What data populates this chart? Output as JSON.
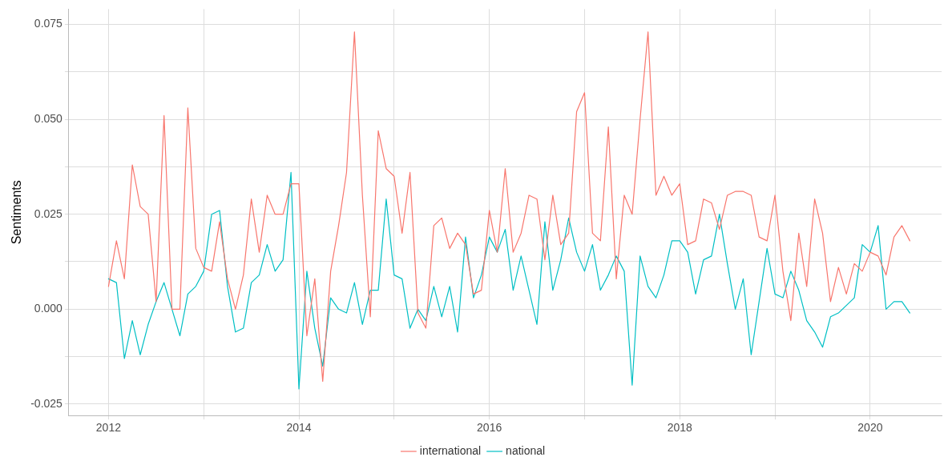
{
  "chart_data": {
    "type": "line",
    "ylabel": "Sentiments",
    "x": [
      "2012-01",
      "2012-02",
      "2012-03",
      "2012-04",
      "2012-05",
      "2012-06",
      "2012-07",
      "2012-08",
      "2012-09",
      "2012-10",
      "2012-11",
      "2012-12",
      "2013-01",
      "2013-02",
      "2013-03",
      "2013-04",
      "2013-05",
      "2013-06",
      "2013-07",
      "2013-08",
      "2013-09",
      "2013-10",
      "2013-11",
      "2013-12",
      "2014-01",
      "2014-02",
      "2014-03",
      "2014-04",
      "2014-05",
      "2014-06",
      "2014-07",
      "2014-08",
      "2014-09",
      "2014-10",
      "2014-11",
      "2014-12",
      "2015-01",
      "2015-02",
      "2015-03",
      "2015-04",
      "2015-05",
      "2015-06",
      "2015-07",
      "2015-08",
      "2015-09",
      "2015-10",
      "2015-11",
      "2015-12",
      "2016-01",
      "2016-02",
      "2016-03",
      "2016-04",
      "2016-05",
      "2016-06",
      "2016-07",
      "2016-08",
      "2016-09",
      "2016-10",
      "2016-11",
      "2016-12",
      "2017-01",
      "2017-02",
      "2017-03",
      "2017-04",
      "2017-05",
      "2017-06",
      "2017-07",
      "2017-08",
      "2017-09",
      "2017-10",
      "2017-11",
      "2017-12",
      "2018-01",
      "2018-02",
      "2018-03",
      "2018-04",
      "2018-05",
      "2018-06",
      "2018-07",
      "2018-08",
      "2018-09",
      "2018-10",
      "2018-11",
      "2018-12",
      "2019-01",
      "2019-02",
      "2019-03",
      "2019-04",
      "2019-05",
      "2019-06",
      "2019-07",
      "2019-08",
      "2019-09",
      "2019-10",
      "2019-11",
      "2019-12",
      "2020-01",
      "2020-02",
      "2020-03",
      "2020-04",
      "2020-05",
      "2020-06"
    ],
    "series": [
      {
        "name": "international",
        "color": "#f8766d",
        "values": [
          0.006,
          0.018,
          0.008,
          0.038,
          0.027,
          0.025,
          0.002,
          0.051,
          0.0,
          0.0,
          0.053,
          0.016,
          0.011,
          0.01,
          0.023,
          0.008,
          0.0,
          0.009,
          0.029,
          0.015,
          0.03,
          0.025,
          0.025,
          0.033,
          0.033,
          -0.007,
          0.008,
          -0.019,
          0.01,
          0.022,
          0.036,
          0.073,
          0.03,
          -0.002,
          0.047,
          0.037,
          0.035,
          0.02,
          0.036,
          -0.001,
          -0.005,
          0.022,
          0.024,
          0.016,
          0.02,
          0.017,
          0.004,
          0.005,
          0.026,
          0.015,
          0.037,
          0.015,
          0.02,
          0.03,
          0.029,
          0.013,
          0.03,
          0.017,
          0.02,
          0.052,
          0.057,
          0.02,
          0.018,
          0.048,
          0.008,
          0.03,
          0.025,
          0.05,
          0.073,
          0.03,
          0.035,
          0.03,
          0.033,
          0.017,
          0.018,
          0.029,
          0.028,
          0.021,
          0.03,
          0.031,
          0.031,
          0.03,
          0.019,
          0.018,
          0.03,
          0.01,
          -0.003,
          0.02,
          0.006,
          0.029,
          0.02,
          0.002,
          0.011,
          0.004,
          0.012,
          0.01,
          0.015,
          0.014,
          0.009,
          0.019,
          0.022,
          0.018
        ]
      },
      {
        "name": "national",
        "color": "#00bfc4",
        "values": [
          0.008,
          0.007,
          -0.013,
          -0.003,
          -0.012,
          -0.004,
          0.002,
          0.007,
          0.0,
          -0.007,
          0.004,
          0.006,
          0.01,
          0.025,
          0.026,
          0.006,
          -0.006,
          -0.005,
          0.007,
          0.009,
          0.017,
          0.01,
          0.013,
          0.036,
          -0.021,
          0.01,
          -0.005,
          -0.015,
          0.003,
          0.0,
          -0.001,
          0.007,
          -0.004,
          0.005,
          0.005,
          0.029,
          0.009,
          0.008,
          -0.005,
          0.0,
          -0.003,
          0.006,
          -0.002,
          0.006,
          -0.006,
          0.019,
          0.003,
          0.009,
          0.019,
          0.015,
          0.021,
          0.005,
          0.014,
          0.005,
          -0.004,
          0.023,
          0.005,
          0.013,
          0.024,
          0.015,
          0.01,
          0.017,
          0.005,
          0.009,
          0.014,
          0.01,
          -0.02,
          0.014,
          0.006,
          0.003,
          0.009,
          0.018,
          0.018,
          0.015,
          0.004,
          0.013,
          0.014,
          0.025,
          0.012,
          0.0,
          0.008,
          -0.012,
          0.002,
          0.016,
          0.004,
          0.003,
          0.01,
          0.005,
          -0.003,
          -0.006,
          -0.01,
          -0.002,
          -0.001,
          0.001,
          0.003,
          0.017,
          0.015,
          0.022,
          0.0,
          0.002,
          0.002,
          -0.001
        ]
      }
    ],
    "xlim": [
      "2011-08",
      "2020-10"
    ],
    "xticks": [
      "2012",
      {
        "value": "2013",
        "label": null
      },
      "2014",
      {
        "value": "2015",
        "label": null
      },
      "2016",
      {
        "value": "2017",
        "label": null
      },
      "2018",
      {
        "value": "2019",
        "label": null
      },
      "2020"
    ],
    "ylim": [
      -0.028,
      0.079
    ],
    "yticks": [
      -0.025,
      {
        "value": -0.0125,
        "label": null
      },
      {
        "value": 0,
        "label": "0.000"
      },
      {
        "value": 0.0125,
        "label": null
      },
      0.025,
      {
        "value": 0.0375,
        "label": null
      },
      {
        "value": 0.05,
        "label": "0.050"
      },
      {
        "value": 0.0625,
        "label": null
      },
      0.075
    ],
    "grid": true,
    "legend": "bottom",
    "marker": "none",
    "line_style": "solid"
  }
}
